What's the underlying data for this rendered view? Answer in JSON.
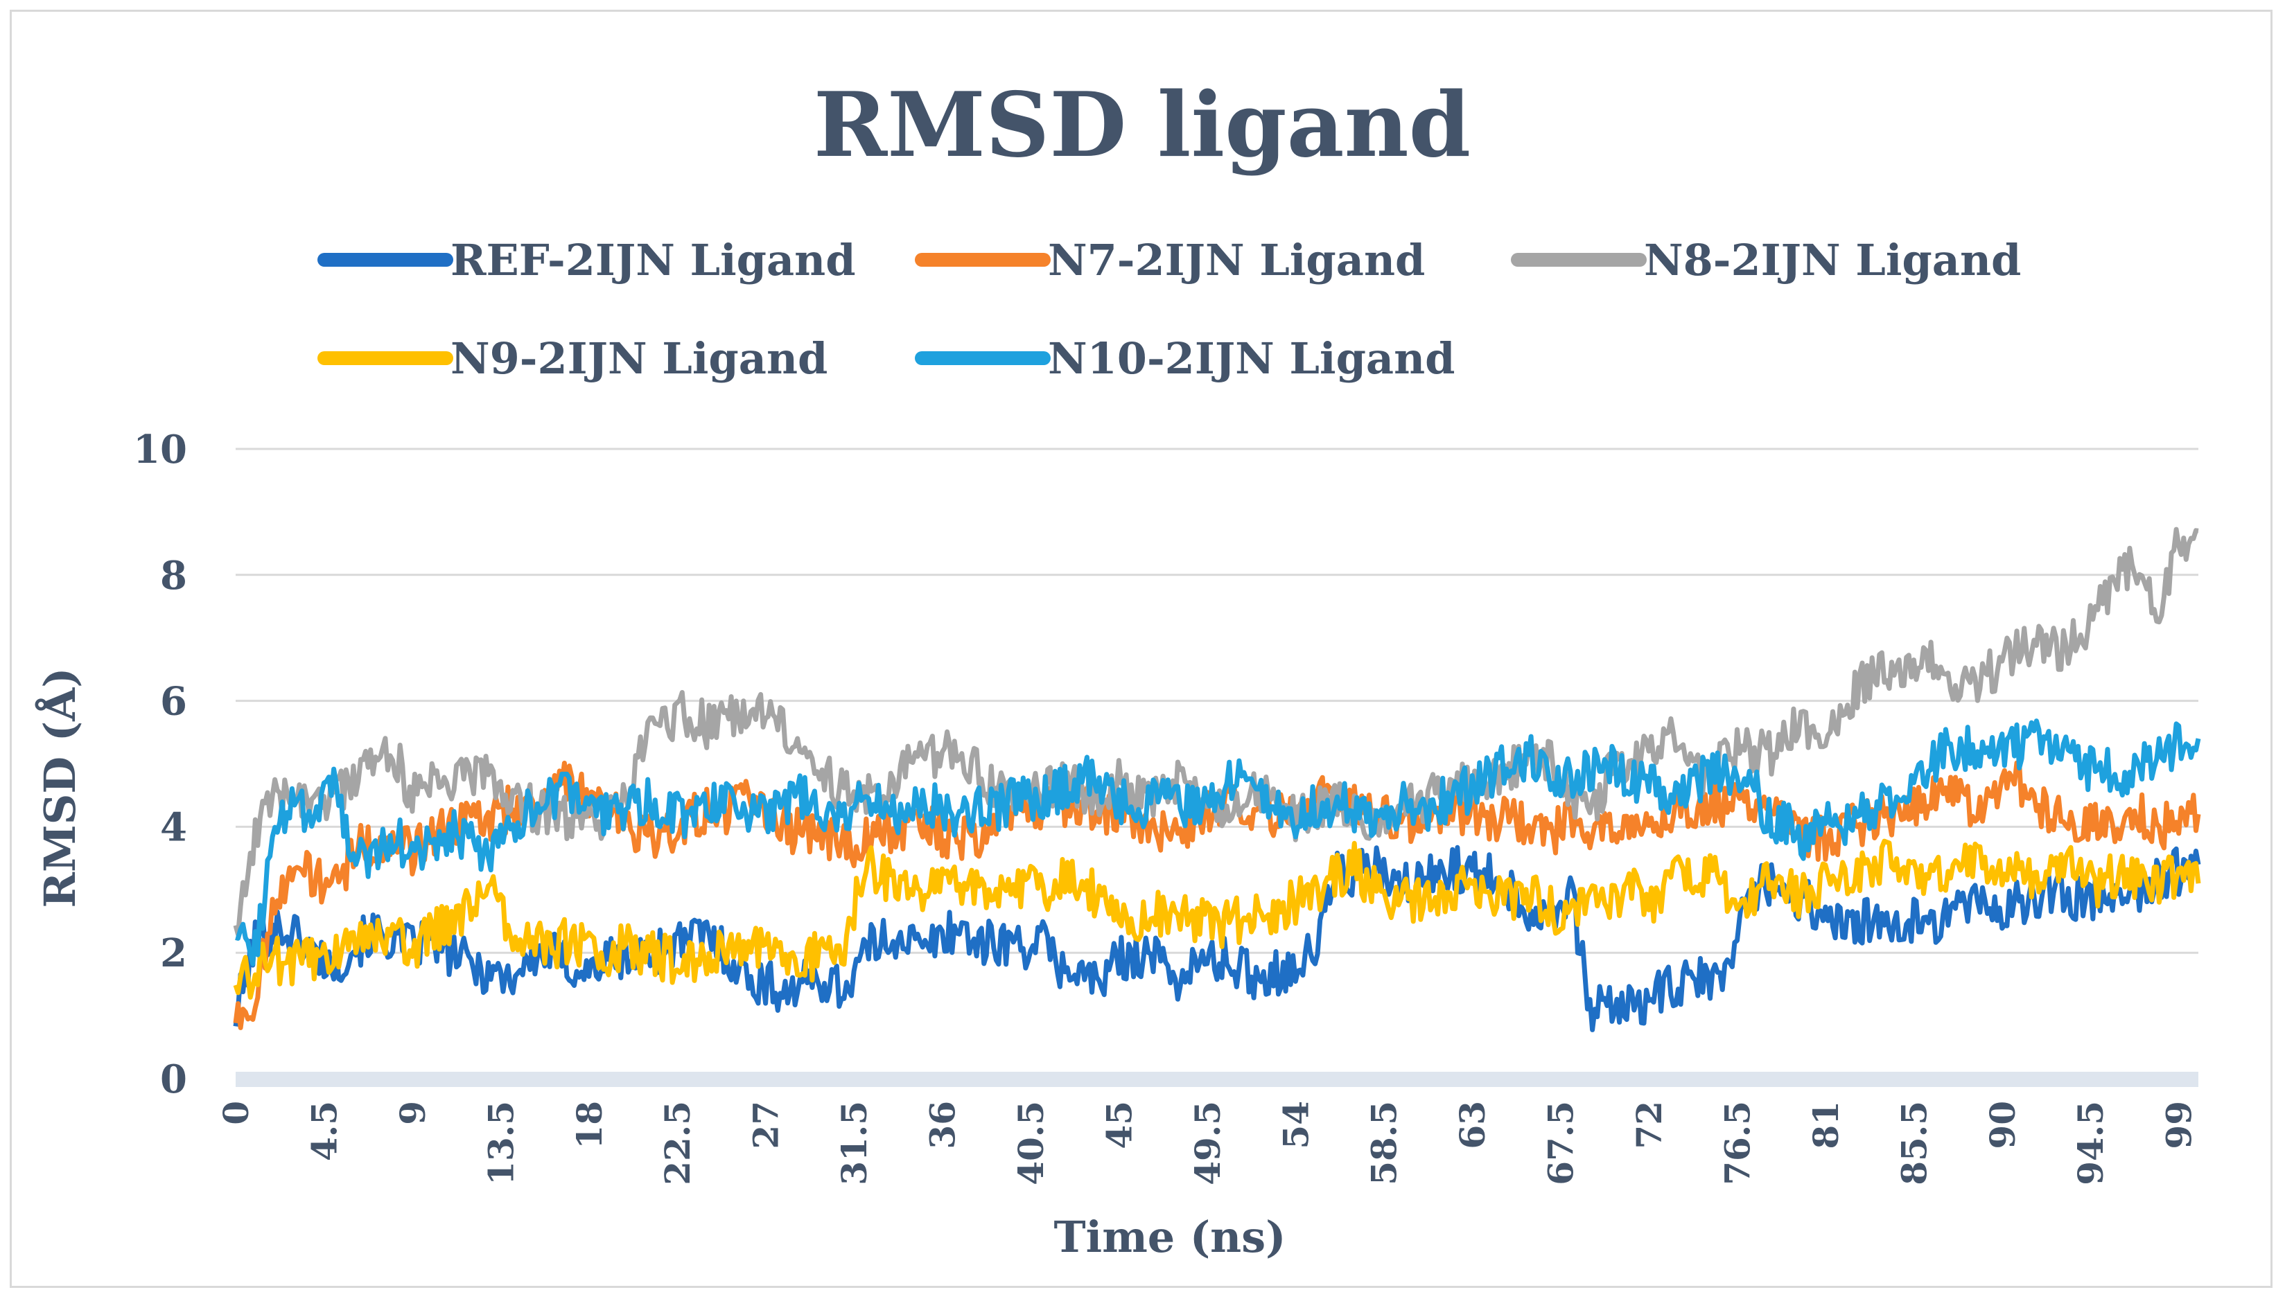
{
  "chart_data": {
    "type": "line",
    "title": "RMSD ligand",
    "xlabel": "Time (ns)",
    "ylabel": "RMSD (Å)",
    "ylim": [
      0,
      10
    ],
    "xlim": [
      0,
      100
    ],
    "yticks": [
      "0",
      "2",
      "4",
      "6",
      "8",
      "10"
    ],
    "xticks": [
      "0",
      "4.5",
      "9",
      "13.5",
      "18",
      "22.5",
      "27",
      "31.5",
      "36",
      "40.5",
      "45",
      "49.5",
      "54",
      "58.5",
      "63",
      "67.5",
      "72",
      "76.5",
      "81",
      "85.5",
      "90",
      "94.5",
      "99"
    ],
    "grid": true,
    "legend_position": "top",
    "series": [
      {
        "name": "REF-2IJN Ligand",
        "color": "#1f6fc5",
        "x": [
          0,
          1,
          2,
          3,
          4,
          5,
          6,
          7,
          8,
          9,
          10,
          11,
          12,
          13,
          14,
          15,
          16,
          17,
          18,
          19,
          20,
          21,
          22,
          23,
          24,
          25,
          26,
          27,
          28,
          29,
          30,
          31,
          32,
          33,
          34,
          35,
          36,
          37,
          38,
          39,
          40,
          41,
          42,
          43,
          44,
          45,
          46,
          47,
          48,
          49,
          50,
          51,
          52,
          53,
          54,
          55,
          56,
          57,
          58,
          59,
          60,
          61,
          62,
          63,
          64,
          65,
          66,
          67,
          68,
          69,
          70,
          71,
          72,
          73,
          74,
          75,
          76,
          77,
          78,
          79,
          80,
          81,
          82,
          83,
          84,
          85,
          86,
          87,
          88,
          89,
          90,
          91,
          92,
          93,
          94,
          95,
          96,
          97,
          98,
          99,
          100
        ],
        "values": [
          1.0,
          2.2,
          2.4,
          2.3,
          2.0,
          1.8,
          2.1,
          2.3,
          2.2,
          2.1,
          2.2,
          2.0,
          1.8,
          1.7,
          1.6,
          1.9,
          2.0,
          1.8,
          1.7,
          1.9,
          1.9,
          2.0,
          2.1,
          2.2,
          2.3,
          2.0,
          1.6,
          1.5,
          1.4,
          1.5,
          1.6,
          1.4,
          2.0,
          2.2,
          2.3,
          2.0,
          2.3,
          2.4,
          2.1,
          2.2,
          2.1,
          2.2,
          1.8,
          1.7,
          1.5,
          1.9,
          2.0,
          1.9,
          1.6,
          1.8,
          1.9,
          1.8,
          1.6,
          1.7,
          1.8,
          2.0,
          3.3,
          3.2,
          3.4,
          3.0,
          3.1,
          3.2,
          3.4,
          3.2,
          3.3,
          3.0,
          2.6,
          2.7,
          3.0,
          1.1,
          1.2,
          1.1,
          1.3,
          1.4,
          1.5,
          1.6,
          1.6,
          3.0,
          3.1,
          3.0,
          2.8,
          2.6,
          2.4,
          2.5,
          2.3,
          2.4,
          2.6,
          2.5,
          2.7,
          2.9,
          2.6,
          2.8,
          2.9,
          3.0,
          2.8,
          2.9,
          3.1,
          3.0,
          3.2,
          3.3,
          3.4
        ]
      },
      {
        "name": "N7-2IJN Ligand",
        "color": "#f5822a",
        "x": [
          0,
          1,
          2,
          3,
          4,
          5,
          6,
          7,
          8,
          9,
          10,
          11,
          12,
          13,
          14,
          15,
          16,
          17,
          18,
          19,
          20,
          21,
          22,
          23,
          24,
          25,
          26,
          27,
          28,
          29,
          30,
          31,
          32,
          33,
          34,
          35,
          36,
          37,
          38,
          39,
          40,
          41,
          42,
          43,
          44,
          45,
          46,
          47,
          48,
          49,
          50,
          51,
          52,
          53,
          54,
          55,
          56,
          57,
          58,
          59,
          60,
          61,
          62,
          63,
          64,
          65,
          66,
          67,
          68,
          69,
          70,
          71,
          72,
          73,
          74,
          75,
          76,
          77,
          78,
          79,
          80,
          81,
          82,
          83,
          84,
          85,
          86,
          87,
          88,
          89,
          90,
          91,
          92,
          93,
          94,
          95,
          96,
          97,
          98,
          99,
          100
        ],
        "values": [
          1.0,
          1.2,
          3.0,
          3.3,
          3.2,
          3.0,
          3.6,
          3.8,
          3.7,
          3.6,
          3.9,
          4.0,
          4.2,
          4.1,
          4.3,
          4.4,
          4.6,
          4.7,
          4.4,
          4.3,
          4.0,
          3.8,
          3.9,
          4.1,
          4.3,
          4.2,
          4.4,
          4.2,
          4.0,
          3.9,
          3.8,
          3.7,
          3.8,
          3.9,
          4.0,
          4.1,
          3.9,
          3.8,
          3.9,
          4.1,
          4.2,
          4.3,
          4.4,
          4.3,
          4.2,
          4.3,
          4.1,
          4.0,
          3.9,
          4.1,
          4.3,
          4.4,
          4.3,
          4.2,
          4.3,
          4.4,
          4.5,
          4.4,
          4.3,
          4.2,
          4.1,
          4.2,
          4.3,
          4.2,
          4.1,
          4.2,
          4.0,
          3.9,
          4.1,
          4.0,
          3.9,
          4.0,
          4.1,
          4.2,
          4.3,
          4.3,
          4.4,
          4.5,
          4.3,
          4.1,
          3.9,
          3.8,
          4.0,
          4.1,
          4.2,
          4.3,
          4.4,
          4.5,
          4.4,
          4.3,
          4.5,
          4.7,
          4.3,
          4.1,
          4.0,
          4.2,
          4.1,
          4.2,
          4.0,
          4.1,
          4.2
        ]
      },
      {
        "name": "N8-2IJN Ligand",
        "color": "#a5a5a5",
        "x": [
          0,
          1,
          2,
          3,
          4,
          5,
          6,
          7,
          8,
          9,
          10,
          11,
          12,
          13,
          14,
          15,
          16,
          17,
          18,
          19,
          20,
          21,
          22,
          23,
          24,
          25,
          26,
          27,
          28,
          29,
          30,
          31,
          32,
          33,
          34,
          35,
          36,
          37,
          38,
          39,
          40,
          41,
          42,
          43,
          44,
          45,
          46,
          47,
          48,
          49,
          50,
          51,
          52,
          53,
          54,
          55,
          56,
          57,
          58,
          59,
          60,
          61,
          62,
          63,
          64,
          65,
          66,
          67,
          68,
          69,
          70,
          71,
          72,
          73,
          74,
          75,
          76,
          77,
          78,
          79,
          80,
          81,
          82,
          83,
          84,
          85,
          86,
          87,
          88,
          89,
          90,
          91,
          92,
          93,
          94,
          95,
          96,
          97,
          98,
          99,
          100
        ],
        "values": [
          2.5,
          3.8,
          4.5,
          4.6,
          4.4,
          4.5,
          4.6,
          5.0,
          5.2,
          4.5,
          4.8,
          4.6,
          4.9,
          4.7,
          4.4,
          4.3,
          4.2,
          4.1,
          4.0,
          4.2,
          4.4,
          5.5,
          5.7,
          5.8,
          5.6,
          5.7,
          5.9,
          5.8,
          5.5,
          5.3,
          4.8,
          4.6,
          4.5,
          4.4,
          4.9,
          5.0,
          5.2,
          5.1,
          4.8,
          4.6,
          4.4,
          4.5,
          4.7,
          4.6,
          4.5,
          4.7,
          4.6,
          4.5,
          4.7,
          4.4,
          4.3,
          4.4,
          4.6,
          4.3,
          4.1,
          4.2,
          4.4,
          4.2,
          4.1,
          4.3,
          4.4,
          4.5,
          4.6,
          4.7,
          4.8,
          4.9,
          5.0,
          5.1,
          4.5,
          4.3,
          4.8,
          5.0,
          5.3,
          5.5,
          5.0,
          4.8,
          5.2,
          5.3,
          5.1,
          5.5,
          5.6,
          5.3,
          6.0,
          6.3,
          6.5,
          6.4,
          6.6,
          6.5,
          6.3,
          6.4,
          6.6,
          6.8,
          6.9,
          6.8,
          7.0,
          7.5,
          8.0,
          8.2,
          7.4,
          8.5,
          8.7
        ]
      },
      {
        "name": "N9-2IJN Ligand",
        "color": "#ffc000",
        "x": [
          0,
          1,
          2,
          3,
          4,
          5,
          6,
          7,
          8,
          9,
          10,
          11,
          12,
          13,
          14,
          15,
          16,
          17,
          18,
          19,
          20,
          21,
          22,
          23,
          24,
          25,
          26,
          27,
          28,
          29,
          30,
          31,
          32,
          33,
          34,
          35,
          36,
          37,
          38,
          39,
          40,
          41,
          42,
          43,
          44,
          45,
          46,
          47,
          48,
          49,
          50,
          51,
          52,
          53,
          54,
          55,
          56,
          57,
          58,
          59,
          60,
          61,
          62,
          63,
          64,
          65,
          66,
          67,
          68,
          69,
          70,
          71,
          72,
          73,
          74,
          75,
          76,
          77,
          78,
          79,
          80,
          81,
          82,
          83,
          84,
          85,
          86,
          87,
          88,
          89,
          90,
          91,
          92,
          93,
          94,
          95,
          96,
          97,
          98,
          99,
          100
        ],
        "values": [
          1.5,
          1.7,
          1.9,
          1.8,
          1.9,
          2.0,
          2.1,
          2.3,
          2.2,
          2.1,
          2.3,
          2.5,
          2.8,
          3.0,
          2.4,
          2.2,
          2.1,
          2.2,
          2.1,
          2.0,
          2.1,
          2.0,
          1.9,
          1.8,
          1.9,
          2.0,
          2.1,
          2.1,
          2.0,
          1.9,
          2.0,
          2.1,
          3.4,
          3.2,
          3.0,
          2.9,
          3.0,
          3.1,
          3.0,
          2.9,
          3.1,
          3.0,
          3.1,
          3.2,
          2.8,
          2.6,
          2.5,
          2.6,
          2.7,
          2.5,
          2.4,
          2.5,
          2.6,
          2.7,
          2.8,
          2.9,
          3.2,
          3.4,
          3.0,
          2.9,
          2.8,
          2.9,
          3.0,
          3.1,
          2.9,
          2.8,
          2.9,
          2.7,
          2.6,
          2.8,
          2.9,
          3.0,
          2.8,
          3.1,
          3.2,
          3.3,
          3.0,
          2.9,
          3.1,
          3.0,
          2.9,
          3.1,
          3.2,
          3.3,
          3.4,
          3.5,
          3.3,
          3.2,
          3.4,
          3.5,
          3.3,
          3.2,
          3.1,
          3.4,
          3.2,
          3.1,
          3.3,
          3.2,
          3.1,
          3.2,
          3.1
        ]
      },
      {
        "name": "N10-2IJN Ligand",
        "color": "#1ea1de",
        "x": [
          0,
          1,
          2,
          3,
          4,
          5,
          6,
          7,
          8,
          9,
          10,
          11,
          12,
          13,
          14,
          15,
          16,
          17,
          18,
          19,
          20,
          21,
          22,
          23,
          24,
          25,
          26,
          27,
          28,
          29,
          30,
          31,
          32,
          33,
          34,
          35,
          36,
          37,
          38,
          39,
          40,
          41,
          42,
          43,
          44,
          45,
          46,
          47,
          48,
          49,
          50,
          51,
          52,
          53,
          54,
          55,
          56,
          57,
          58,
          59,
          60,
          61,
          62,
          63,
          64,
          65,
          66,
          67,
          68,
          69,
          70,
          71,
          72,
          73,
          74,
          75,
          76,
          77,
          78,
          79,
          80,
          81,
          82,
          83,
          84,
          85,
          86,
          87,
          88,
          89,
          90,
          91,
          92,
          93,
          94,
          95,
          96,
          97,
          98,
          99,
          100
        ],
        "values": [
          2.2,
          2.0,
          4.0,
          4.3,
          4.1,
          4.6,
          3.5,
          3.6,
          3.7,
          3.8,
          3.6,
          3.9,
          3.7,
          3.4,
          4.1,
          4.3,
          4.4,
          4.5,
          4.3,
          4.2,
          4.3,
          4.4,
          4.3,
          4.2,
          4.3,
          4.4,
          4.3,
          4.2,
          4.4,
          4.5,
          4.3,
          4.2,
          4.4,
          4.3,
          4.1,
          4.4,
          4.3,
          4.2,
          4.4,
          4.3,
          4.5,
          4.4,
          4.6,
          4.8,
          4.7,
          4.4,
          4.3,
          4.5,
          4.4,
          4.3,
          4.6,
          4.8,
          4.5,
          4.3,
          4.2,
          4.3,
          4.4,
          4.3,
          4.1,
          4.3,
          4.4,
          4.3,
          4.5,
          4.6,
          4.8,
          5.0,
          5.1,
          4.9,
          4.8,
          4.9,
          5.0,
          4.8,
          4.7,
          4.6,
          4.7,
          4.8,
          4.9,
          4.8,
          4.2,
          4.0,
          3.8,
          4.2,
          4.0,
          4.3,
          4.4,
          4.6,
          4.9,
          5.2,
          5.3,
          5.1,
          5.2,
          5.3,
          5.4,
          5.2,
          5.0,
          4.9,
          4.8,
          5.0,
          5.1,
          5.3,
          5.4
        ]
      }
    ]
  }
}
